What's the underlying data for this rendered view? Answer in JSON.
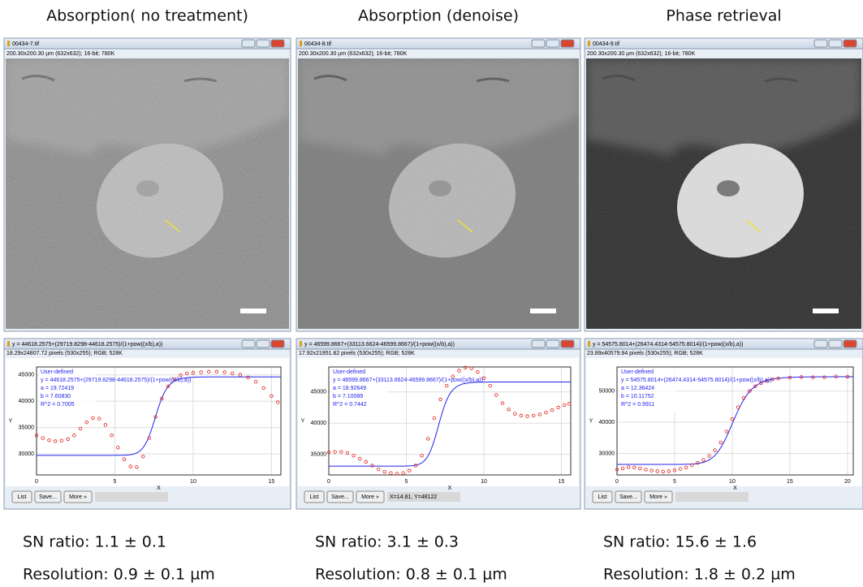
{
  "panels": [
    {
      "heading": "Absorption( no treatment)",
      "image_window": {
        "title": "00434-7.tif",
        "info": "200.30x200.30 µm (632x632); 16-bit; 780K"
      },
      "plot_window": {
        "title": "y = 44618.2575+(29719.8298-44618.2575)/(1+pow((x/b),a))",
        "info": "18.29x24807.72 pixels (530x255); RGB; 528K",
        "legend": [
          "User-defined",
          "y = 44618.2575+(29719.8298-44618.2575)/(1+pow((x/b),a))",
          "a = 19.72419",
          "b = 7.60830",
          "R^2 = 0.7005"
        ],
        "x_label": "X",
        "y_label": "Y",
        "xlim": [
          0,
          15.6
        ],
        "xticks": [
          0,
          5,
          10,
          15
        ],
        "ylim": [
          26000,
          46500
        ],
        "yticks": [
          30000,
          35000,
          40000,
          45000
        ],
        "points": {
          "x": [
            0,
            0.4,
            0.8,
            1.2,
            1.6,
            2.0,
            2.4,
            2.8,
            3.2,
            3.6,
            4.0,
            4.4,
            4.8,
            5.2,
            5.6,
            6.0,
            6.4,
            6.8,
            7.2,
            7.6,
            8.0,
            8.4,
            8.8,
            9.2,
            9.6,
            10.0,
            10.5,
            11.0,
            11.5,
            12.0,
            12.5,
            13.0,
            13.5,
            14.0,
            14.5,
            15.0,
            15.4
          ],
          "y": [
            33500,
            33000,
            32600,
            32400,
            32500,
            32800,
            33500,
            34800,
            36000,
            36800,
            36700,
            35500,
            33500,
            31200,
            29000,
            27600,
            27500,
            29500,
            33000,
            37000,
            40500,
            42800,
            44200,
            44900,
            45300,
            45400,
            45500,
            45600,
            45600,
            45500,
            45300,
            45000,
            44500,
            43700,
            42500,
            41000,
            39800
          ]
        },
        "buttons": [
          "List",
          "Save...",
          "More »"
        ]
      },
      "sn_ratio": "SN ratio: 1.1 ± 0.1",
      "resolution": "Resolution: 0.9 ± 0.1 µm"
    },
    {
      "heading": "Absorption (denoise)",
      "image_window": {
        "title": "00434-8.tif",
        "info": "200.30x200.30 µm (632x632); 16-bit; 780K"
      },
      "plot_window": {
        "title": "y = 46599.8667+(33113.6624-46599.8667)/(1+pow((x/b),a))",
        "info": "17.92x21951.82 pixels (530x255); RGB; 528K",
        "legend": [
          "User-defined",
          "y = 46599.8667+(33113.6624-46599.8667)/(1+pow((x/b),a))",
          "a = 18.92649",
          "b = 7.10089",
          "R^2 = 0.7442"
        ],
        "x_label": "X",
        "y_label": "Y",
        "xlim": [
          0,
          15.6
        ],
        "xticks": [
          0,
          5,
          10,
          15
        ],
        "ylim": [
          31700,
          49000
        ],
        "yticks": [
          35000,
          40000,
          45000
        ],
        "points": {
          "x": [
            0,
            0.4,
            0.8,
            1.2,
            1.6,
            2.0,
            2.4,
            2.8,
            3.2,
            3.6,
            4.0,
            4.4,
            4.8,
            5.2,
            5.6,
            6.0,
            6.4,
            6.8,
            7.2,
            7.6,
            8.0,
            8.4,
            8.8,
            9.2,
            9.6,
            10.0,
            10.4,
            10.8,
            11.2,
            11.6,
            12.0,
            12.4,
            12.8,
            13.2,
            13.6,
            14.0,
            14.4,
            14.8,
            15.2,
            15.5
          ],
          "y": [
            35300,
            35400,
            35400,
            35200,
            34800,
            34300,
            33800,
            33200,
            32600,
            32200,
            32000,
            31900,
            32000,
            32400,
            33200,
            34800,
            37500,
            40800,
            43800,
            46000,
            47500,
            48400,
            48900,
            48800,
            48200,
            47200,
            46000,
            44500,
            43200,
            42200,
            41500,
            41200,
            41100,
            41200,
            41400,
            41700,
            42100,
            42500,
            42900,
            43100
          ]
        },
        "buttons": [
          "List",
          "Save...",
          "More »"
        ],
        "status": "X=14.81, Y=48122"
      },
      "sn_ratio": "SN ratio: 3.1 ± 0.3",
      "resolution": "Resolution: 0.8 ± 0.1 µm"
    },
    {
      "heading": "Phase retrieval",
      "image_window": {
        "title": "00434-9.tif",
        "info": "200.30x200.30 µm (632x632); 16-bit; 780K"
      },
      "plot_window": {
        "title": "y = 54575.8014+(26474.4314-54575.8014)/(1+pow((x/b),a))",
        "info": "23.89x40579.94 pixels (530x255); RGB; 528K",
        "legend": [
          "User-defined",
          "y = 54575.8014+(26474.4314-54575.8014)/(1+pow((x/b),a))",
          "a = 12.36424",
          "b = 10.11752",
          "R^2 = 0.9911"
        ],
        "x_label": "X",
        "y_label": "Y",
        "xlim": [
          0,
          20.5
        ],
        "xticks": [
          0,
          5,
          10,
          15,
          20
        ],
        "ylim": [
          23100,
          57700
        ],
        "yticks": [
          30000,
          40000,
          50000
        ],
        "points": {
          "x": [
            0,
            0.5,
            1,
            1.5,
            2,
            2.5,
            3,
            3.5,
            4,
            4.5,
            5,
            5.5,
            6,
            6.5,
            7,
            7.5,
            8,
            8.5,
            9,
            9.5,
            10,
            10.5,
            11,
            11.5,
            12,
            12.5,
            13,
            13.5,
            14,
            15,
            16,
            17,
            18,
            19,
            20
          ],
          "y": [
            24800,
            25200,
            25600,
            25500,
            25200,
            24800,
            24500,
            24300,
            24200,
            24300,
            24600,
            25000,
            25500,
            26200,
            27000,
            27900,
            29200,
            31000,
            33500,
            37000,
            41000,
            44800,
            47800,
            50000,
            51500,
            52500,
            53200,
            53700,
            54000,
            54300,
            54500,
            54400,
            54400,
            54700,
            54600
          ]
        },
        "buttons": [
          "List",
          "Save...",
          "More »"
        ]
      },
      "sn_ratio": "SN ratio: 15.6 ± 1.6",
      "resolution": "Resolution: 1.8 ± 0.2 µm"
    }
  ]
}
